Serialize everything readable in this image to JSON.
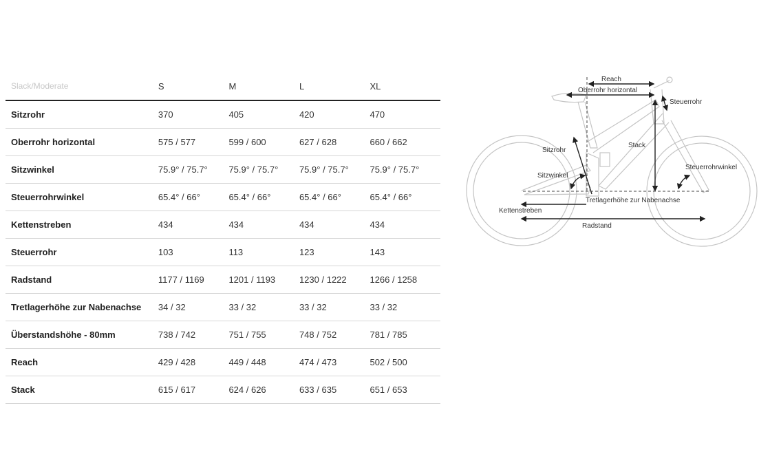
{
  "table": {
    "corner_label": "Slack/Moderate",
    "sizes": [
      "S",
      "M",
      "L",
      "XL"
    ],
    "rows": [
      {
        "label": "Sitzrohr",
        "values": [
          "370",
          "405",
          "420",
          "470"
        ]
      },
      {
        "label": "Oberrohr horizontal",
        "values": [
          "575 / 577",
          "599 / 600",
          "627 / 628",
          "660 / 662"
        ]
      },
      {
        "label": "Sitzwinkel",
        "values": [
          "75.9° / 75.7°",
          "75.9° / 75.7°",
          "75.9° / 75.7°",
          "75.9° / 75.7°"
        ]
      },
      {
        "label": "Steuerrohrwinkel",
        "values": [
          "65.4° / 66°",
          "65.4° / 66°",
          "65.4° / 66°",
          "65.4° / 66°"
        ]
      },
      {
        "label": "Kettenstreben",
        "values": [
          "434",
          "434",
          "434",
          "434"
        ]
      },
      {
        "label": "Steuerrohr",
        "values": [
          "103",
          "113",
          "123",
          "143"
        ]
      },
      {
        "label": "Radstand",
        "values": [
          "1177 / 1169",
          "1201 / 1193",
          "1230 / 1222",
          "1266 / 1258"
        ]
      },
      {
        "label": "Tretlagerhöhe zur Nabenachse",
        "values": [
          "34 / 32",
          "33 / 32",
          "33 / 32",
          "33 / 32"
        ]
      },
      {
        "label": "Überstandshöhe - 80mm",
        "values": [
          "738 / 742",
          "751 / 755",
          "748 / 752",
          "781 / 785"
        ]
      },
      {
        "label": "Reach",
        "values": [
          "429 / 428",
          "449 / 448",
          "474 / 473",
          "502 / 500"
        ]
      },
      {
        "label": "Stack",
        "values": [
          "615 / 617",
          "624 / 626",
          "633 / 635",
          "651 / 653"
        ]
      }
    ]
  },
  "diagram": {
    "labels": {
      "reach": "Reach",
      "oberrohr": "Oberrohr horizontal",
      "steuerrohr": "Steuerrohr",
      "stack": "Stack",
      "sitzrohr": "Sitzrohr",
      "sitzwinkel": "Sitzwinkel",
      "steuerrohrwinkel": "Steuerrohrwinkel",
      "tretlager": "Tretlagerhöhe zur Nabenachse",
      "kettenstreben": "Kettenstreben",
      "radstand": "Radstand"
    },
    "colors": {
      "frame": "#c4c4c4",
      "measure": "#222222"
    }
  }
}
